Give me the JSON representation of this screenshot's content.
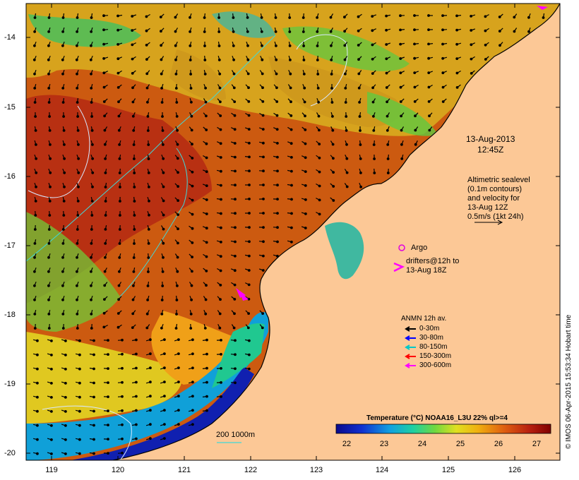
{
  "map": {
    "y_ticks": [
      "-14",
      "-15",
      "-16",
      "-17",
      "-18",
      "-19",
      "-20"
    ],
    "x_ticks": [
      "119",
      "120",
      "121",
      "122",
      "123",
      "124",
      "125",
      "126"
    ],
    "lat_range": [
      -20.1,
      -13.4
    ],
    "lon_range": [
      118.6,
      126.7
    ]
  },
  "annotations": {
    "date": "13-Aug-2013\n12:45Z",
    "altimetry": "Altimetric sealevel\n(0.1m contours)\nand velocity for\n13-Aug 12Z\n0.5m/s (1kt 24h)",
    "argo": "Argo",
    "drifters": "drifters@12h to\n13-Aug 18Z",
    "depth_scale": "200  1000m",
    "credit": "© IMOS 06-Apr-2015 15:53:34 Hobart time"
  },
  "legend": {
    "title": "ANMN 12h av.",
    "items": [
      {
        "label": "0-30m",
        "color": "#000000"
      },
      {
        "label": "30-80m",
        "color": "#0000ff"
      },
      {
        "label": "80-150m",
        "color": "#00c8c8"
      },
      {
        "label": "150-300m",
        "color": "#ff0000"
      },
      {
        "label": "300-600m",
        "color": "#ff00ff"
      }
    ]
  },
  "colorbar": {
    "title": "Temperature (°C) NOAA16_L3U 22% ql>=4",
    "ticks": [
      "22",
      "23",
      "24",
      "25",
      "26",
      "27"
    ],
    "range": [
      21.5,
      27.5
    ]
  },
  "colors": {
    "land": "#fcc896",
    "argo": "#e000e0",
    "drifter": "#ff00ff",
    "contour": "#b8d8ff"
  }
}
